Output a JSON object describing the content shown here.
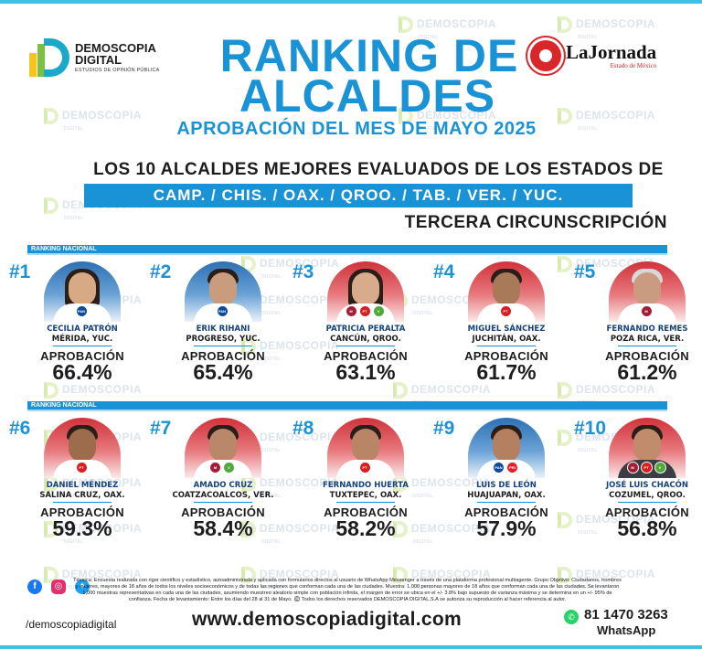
{
  "watermark": {
    "line1": "DEMOSCOPIA",
    "line2": "DIGITAL",
    "sub": "ESTUDIOS DE OPINIÓN PÚBLICA"
  },
  "brand": {
    "name_line1": "DEMOSCOPIA",
    "name_line2": "DIGITAL",
    "tagline": "ESTUDIOS DE OPINIÓN PÚBLICA",
    "partner_name": "LaJornada",
    "partner_sub": "Estado de México"
  },
  "header": {
    "title_line1": "RANKING DE",
    "title_line2": "ALCALDES",
    "subtitle": "APROBACIÓN DEL MES DE MAYO 2025",
    "headline": "LOS 10 ALCALDES MEJORES EVALUADOS DE LOS ESTADOS DE",
    "states": "CAMP. / CHIS. / OAX. / QROO. / TAB. / VER. / YUC.",
    "circumscription": "TERCERA CIRCUNSCRIPCIÓN"
  },
  "section_label": "RANKING NACIONAL",
  "approval_label": "APROBACIÓN",
  "colors": {
    "accent": "#1a92d6",
    "pan": "#0c4a9c",
    "morena": "#a41d36",
    "pt": "#d81e1e"
  },
  "mayors": [
    {
      "rank": "#1",
      "name": "CECILIA PATRÓN",
      "place": "MÉRIDA, YUC.",
      "approval": "66.4%",
      "bg": "blue",
      "parties": [
        "PAN"
      ]
    },
    {
      "rank": "#2",
      "name": "ERIK RIHANI",
      "place": "PROGRESO, YUC.",
      "approval": "65.4%",
      "bg": "blue",
      "parties": [
        "PAN"
      ]
    },
    {
      "rank": "#3",
      "name": "PATRICIA PERALTA",
      "place": "CANCÚN, QROO.",
      "approval": "63.1%",
      "bg": "red",
      "parties": [
        "morena",
        "PT",
        "verde"
      ]
    },
    {
      "rank": "#4",
      "name": "MIGUEL SÁNCHEZ",
      "place": "JUCHITÁN, OAX.",
      "approval": "61.7%",
      "bg": "red",
      "parties": [
        "PT"
      ]
    },
    {
      "rank": "#5",
      "name": "FERNANDO REMES",
      "place": "POZA RICA, VER.",
      "approval": "61.2%",
      "bg": "red",
      "parties": [
        "morena"
      ]
    },
    {
      "rank": "#6",
      "name": "DANIEL MÉNDEZ",
      "place": "SALINA CRUZ, OAX.",
      "approval": "59.3%",
      "bg": "red",
      "parties": [
        "PT"
      ]
    },
    {
      "rank": "#7",
      "name": "AMADO CRUZ",
      "place": "COATZACOALCOS, VER.",
      "approval": "58.4%",
      "bg": "red",
      "parties": [
        "morena",
        "verde"
      ]
    },
    {
      "rank": "#8",
      "name": "FERNANDO HUERTA",
      "place": "TUXTEPEC, OAX.",
      "approval": "58.2%",
      "bg": "red",
      "parties": [
        "PT"
      ]
    },
    {
      "rank": "#9",
      "name": "LUIS DE LEÓN",
      "place": "HUAJUAPAN, OAX.",
      "approval": "57.9%",
      "bg": "blue",
      "parties": [
        "PAN",
        "PRI"
      ]
    },
    {
      "rank": "#10",
      "name": "JOSÉ LUIS CHACÓN",
      "place": "COZUMEL, QROO.",
      "approval": "56.8%",
      "bg": "red",
      "parties": [
        "morena",
        "PT",
        "verde"
      ]
    }
  ],
  "footer": {
    "technical_note": "Técnica: Encuesta realizada con rigor científico y estadístico, autoadministrada y aplicada con formularios directos al usuario de WhatsApp Messenger a través de una plataforma profesional multiagente. Grupo Objetivo: Ciudadanos, hombres y mujeres, mayores de 18 años de todos los niveles socioeconómicos y de todas las regiones que conforman cada una de las ciudades. Muestra: 1,000 personas mayores de 18 años que conforman cada una de las ciudades. Se levantaron 1,000 muestras representativas en cada una de las ciudades, asumiendo muestreo aleatorio simple con población infinita, el margen de error se ubica en el +/- 3.8% bajo supuesto de varianza máxima y se determina en un +/- 95% de confianza. Fecha de levantamiento: Entre los días del 28 al 31 de Mayo. ©️ Todos los derechos reservados DEMOSCOPIA DIGITAL,S.A se autoriza su reproducción al hacer referencia al autor.",
    "handle": "/demoscopiadigital",
    "website": "www.demoscopiadigital.com",
    "phone": "81 1470 3263",
    "whatsapp_label": "WhatsApp"
  }
}
